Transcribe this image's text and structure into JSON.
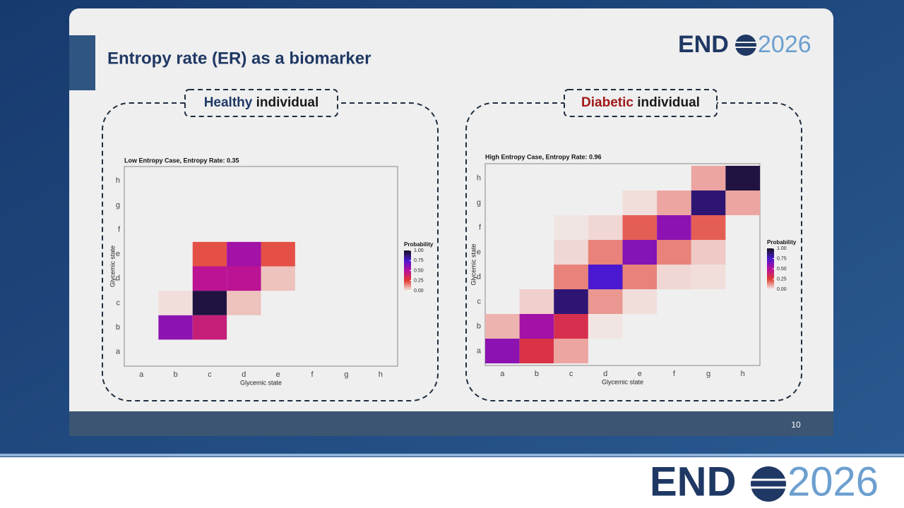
{
  "slide": {
    "title": "Entropy rate (ER) as a biomarker",
    "page_number": "10",
    "panels": [
      {
        "highlight": "Healthy",
        "highlight_color": "#1f3864",
        "rest": "individual"
      },
      {
        "highlight": "Diabetic",
        "highlight_color": "#a01a1a",
        "rest": "individual"
      }
    ]
  },
  "logo": {
    "left": "END",
    "right": "2026"
  },
  "chart_data": [
    {
      "type": "heatmap",
      "title": "Low Entropy Case, Entropy Rate: 0.35",
      "x_label": "Glycemic state",
      "y_label": "Glycemic state",
      "legend_title": "Probability",
      "categories": [
        "a",
        "b",
        "c",
        "d",
        "e",
        "f",
        "g",
        "h"
      ],
      "y_categories": [
        "a",
        "b",
        "c",
        "d",
        "e",
        "f",
        "g",
        "h"
      ],
      "values": [
        [
          null,
          null,
          null,
          null,
          null,
          null,
          null,
          null
        ],
        [
          null,
          0.6,
          0.42,
          null,
          null,
          null,
          null,
          null
        ],
        [
          null,
          0.02,
          0.95,
          0.06,
          null,
          null,
          null,
          null
        ],
        [
          null,
          null,
          0.48,
          0.48,
          0.06,
          null,
          null,
          null
        ],
        [
          null,
          null,
          0.22,
          0.55,
          0.22,
          null,
          null,
          null
        ],
        [
          null,
          null,
          null,
          null,
          null,
          null,
          null,
          null
        ],
        [
          null,
          null,
          null,
          null,
          null,
          null,
          null,
          null
        ],
        [
          null,
          null,
          null,
          null,
          null,
          null,
          null,
          null
        ]
      ],
      "clim": [
        0,
        1
      ],
      "colorbar_ticks": [
        {
          "value": 0,
          "label": "0.00"
        },
        0.25,
        {
          "value": 0.5,
          "label": "0.50"
        },
        0.75,
        {
          "value": 1,
          "label": "1.00"
        }
      ],
      "colorbar_colors": [
        "#f2ecea",
        "#e23b30",
        "#b8109c",
        "#4a18d0",
        "#15121f"
      ]
    },
    {
      "type": "heatmap",
      "title": "High Entropy Case, Entropy Rate: 0.96",
      "x_label": "Glycemic state",
      "y_label": "Glycemic state",
      "legend_title": "Probability",
      "categories": [
        "a",
        "b",
        "c",
        "d",
        "e",
        "f",
        "g",
        "h"
      ],
      "y_categories": [
        "a",
        "b",
        "c",
        "d",
        "e",
        "f",
        "g",
        "h"
      ],
      "values": [
        [
          0.6,
          0.3,
          0.1,
          null,
          null,
          null,
          null,
          null
        ],
        [
          0.08,
          0.55,
          0.32,
          0.01,
          null,
          null,
          null,
          null
        ],
        [
          null,
          0.04,
          0.88,
          0.12,
          0.02,
          null,
          null,
          null
        ],
        [
          null,
          null,
          0.15,
          0.75,
          0.15,
          0.03,
          0.02,
          null
        ],
        [
          null,
          null,
          0.03,
          0.15,
          0.62,
          0.15,
          0.05,
          null
        ],
        [
          null,
          null,
          0.01,
          0.03,
          0.2,
          0.6,
          0.2,
          null
        ],
        [
          null,
          null,
          null,
          null,
          0.02,
          0.1,
          0.88,
          0.1
        ],
        [
          null,
          null,
          null,
          null,
          null,
          null,
          0.1,
          0.95
        ]
      ],
      "clim": [
        0,
        1
      ],
      "colorbar_ticks": [
        {
          "value": 0,
          "label": "0.00"
        },
        0.25,
        {
          "value": 0.5,
          "label": "0.50"
        },
        0.75,
        {
          "value": 1,
          "label": "1.00"
        }
      ],
      "colorbar_colors": [
        "#f2ecea",
        "#e23b30",
        "#b8109c",
        "#4a18d0",
        "#15121f"
      ]
    }
  ]
}
